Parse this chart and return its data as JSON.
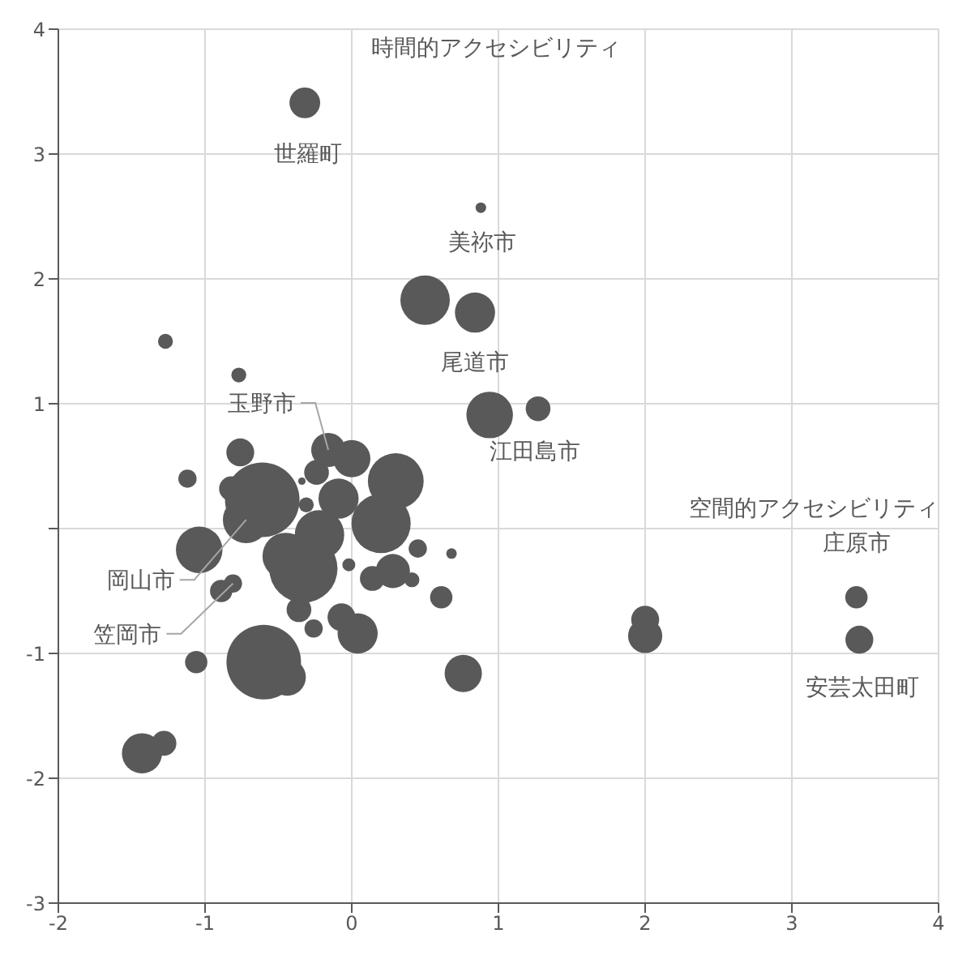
{
  "chart_data": {
    "type": "bubble",
    "xlabel": "空間的アクセシビリティ",
    "ylabel": "時間的アクセシビリティ",
    "xlim": [
      -2,
      4
    ],
    "xticks": [
      -2,
      -1,
      0,
      1,
      2,
      3,
      4
    ],
    "ylim": [
      -3,
      4
    ],
    "yticks": [
      -3,
      -2,
      -1,
      {
        "value": 0,
        "label": null
      },
      1,
      2,
      3,
      4
    ],
    "grid": true,
    "series": [
      {
        "color": "#595959",
        "x": [
          -0.32,
          0.88,
          0.5,
          0.84,
          0.94,
          1.27,
          -1.27,
          -0.77,
          -0.76,
          -1.12,
          -0.82,
          -0.61,
          -0.72,
          -1.04,
          -0.16,
          0.0,
          -0.24,
          -0.34,
          0.3,
          -0.09,
          -0.31,
          0.2,
          -0.22,
          -0.45,
          -0.33,
          -0.02,
          0.45,
          0.68,
          0.14,
          0.28,
          0.41,
          0.61,
          -0.89,
          -0.81,
          -0.36,
          -0.26,
          -0.07,
          0.04,
          -0.6,
          -0.44,
          -1.06,
          0.76,
          -1.43,
          -1.28,
          2.0,
          2.0,
          3.44,
          3.46
        ],
        "values": [
          3.41,
          2.57,
          1.83,
          1.73,
          0.91,
          0.96,
          1.5,
          1.23,
          0.61,
          0.4,
          0.32,
          0.23,
          0.07,
          -0.17,
          0.63,
          0.56,
          0.45,
          0.38,
          0.38,
          0.24,
          0.19,
          0.04,
          -0.05,
          -0.22,
          -0.32,
          -0.29,
          -0.16,
          -0.2,
          -0.4,
          -0.34,
          -0.41,
          -0.55,
          -0.5,
          -0.44,
          -0.65,
          -0.8,
          -0.71,
          -0.84,
          -1.07,
          -1.19,
          -1.07,
          -1.16,
          -1.8,
          -1.72,
          -0.73,
          -0.86,
          -0.55,
          -0.89
        ],
        "sizes": [
          0.17,
          0.02,
          0.44,
          0.29,
          0.39,
          0.11,
          0.04,
          0.04,
          0.14,
          0.06,
          0.11,
          1,
          0.39,
          0.39,
          0.21,
          0.25,
          0.11,
          0.01,
          0.56,
          0.29,
          0.04,
          0.63,
          0.44,
          0.39,
          0.84,
          0.03,
          0.06,
          0.02,
          0.11,
          0.21,
          0.04,
          0.09,
          0.09,
          0.06,
          0.11,
          0.06,
          0.14,
          0.29,
          1,
          0.25,
          0.09,
          0.25,
          0.29,
          0.11,
          0.14,
          0.21,
          0.09,
          0.14
        ]
      }
    ],
    "annotations": [
      {
        "text": "世羅町",
        "x": -0.32,
        "y": 3.41
      },
      {
        "text": "美祢市",
        "x": 0.88,
        "y": 2.57
      },
      {
        "text": "尾道市",
        "x": 0.84,
        "y": 1.73
      },
      {
        "text": "江田島市",
        "x": 0.94,
        "y": 0.91
      },
      {
        "text": "玉野市",
        "x": -0.16,
        "y": 0.63
      },
      {
        "text": "岡山市",
        "x": -0.72,
        "y": 0.07
      },
      {
        "text": "笠岡市",
        "x": -0.81,
        "y": -0.44
      },
      {
        "text": "庄原市",
        "x": 3.44,
        "y": -0.55
      },
      {
        "text": "安芸太田町",
        "x": 3.46,
        "y": -0.89
      }
    ]
  }
}
